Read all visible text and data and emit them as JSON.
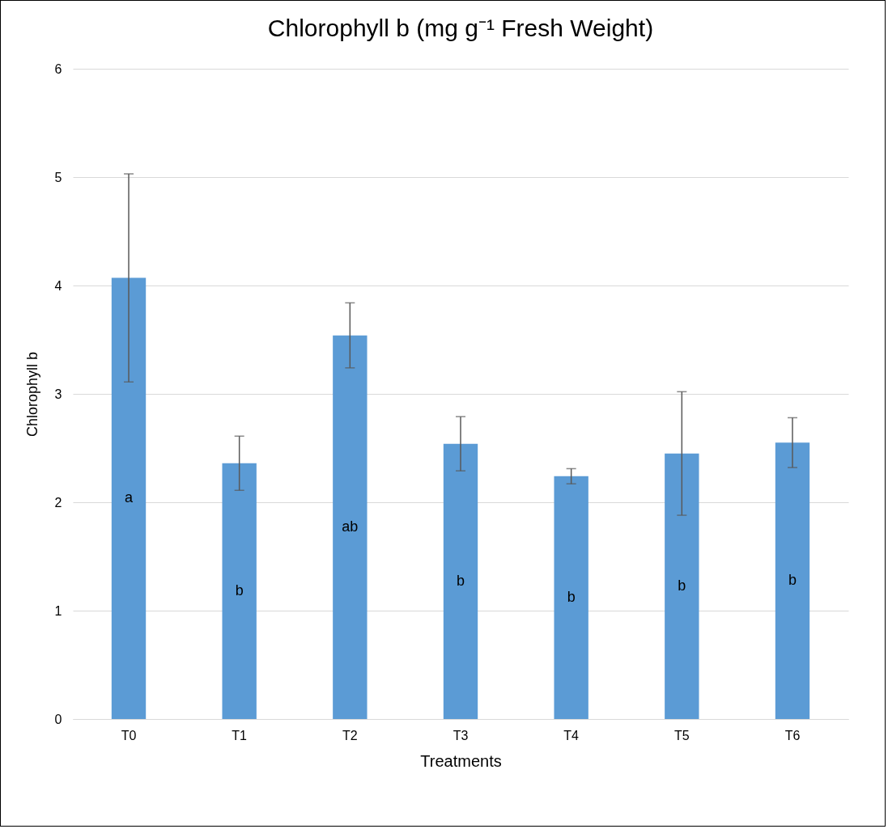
{
  "chart_data": {
    "type": "bar",
    "title": "Chlorophyll b (mg g⁻¹ Fresh Weight)",
    "xlabel": "Treatments",
    "ylabel": "Chlorophyll b",
    "categories": [
      "T0",
      "T1",
      "T2",
      "T3",
      "T4",
      "T5",
      "T6"
    ],
    "values": [
      4.07,
      2.36,
      3.54,
      2.54,
      2.24,
      2.45,
      2.55
    ],
    "errors": [
      0.96,
      0.25,
      0.3,
      0.25,
      0.07,
      0.57,
      0.23
    ],
    "color": "#5b9bd5",
    "ylim": [
      0,
      6
    ],
    "yticks": [
      0,
      1,
      2,
      3,
      4,
      5,
      6
    ],
    "grid": "y",
    "annotations": [
      "a",
      "b",
      "ab",
      "b",
      "b",
      "b",
      "b"
    ]
  }
}
